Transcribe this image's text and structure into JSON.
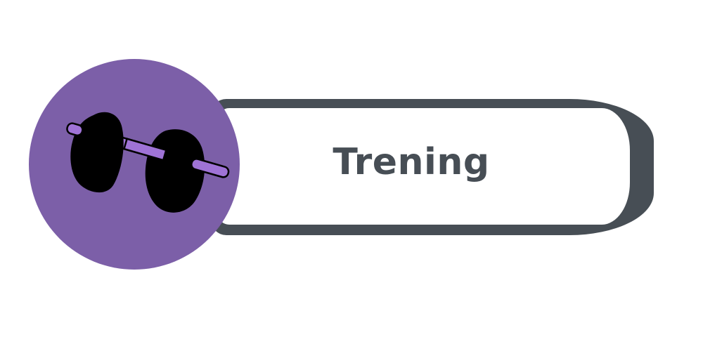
{
  "button": {
    "label": "Trening"
  },
  "icon": {
    "name": "dumbbell-icon"
  },
  "colors": {
    "circle": "#7c5fa8",
    "text": "#474e55",
    "border": "#474e55",
    "bar": "#9f73d6"
  }
}
